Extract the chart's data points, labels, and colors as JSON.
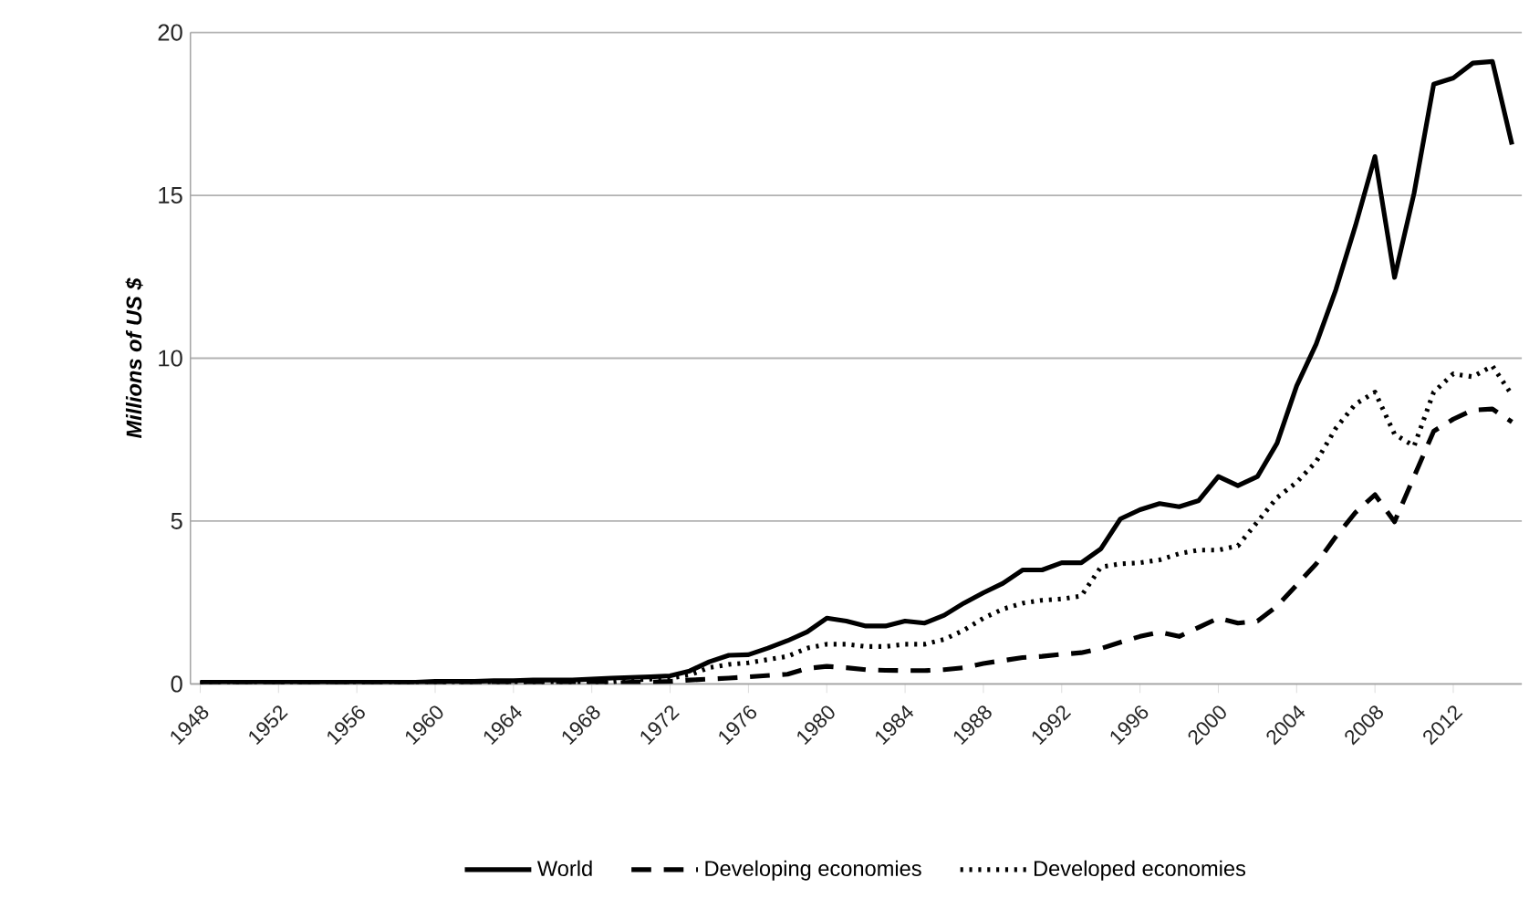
{
  "chart_data": {
    "type": "line",
    "ylabel": "Millions of US $",
    "x": [
      1948,
      1949,
      1950,
      1951,
      1952,
      1953,
      1954,
      1955,
      1956,
      1957,
      1958,
      1959,
      1960,
      1961,
      1962,
      1963,
      1964,
      1965,
      1966,
      1967,
      1968,
      1969,
      1970,
      1971,
      1972,
      1973,
      1974,
      1975,
      1976,
      1977,
      1978,
      1979,
      1980,
      1981,
      1982,
      1983,
      1984,
      1985,
      1986,
      1987,
      1988,
      1989,
      1990,
      1991,
      1992,
      1993,
      1994,
      1995,
      1996,
      1997,
      1998,
      1999,
      2000,
      2001,
      2002,
      2003,
      2004,
      2005,
      2006,
      2007,
      2008,
      2009,
      2010,
      2011,
      2012,
      2013,
      2014,
      2015
    ],
    "series": [
      {
        "name": "World",
        "color": "#000000",
        "line_style": "solid",
        "values": [
          0.05,
          0.05,
          0.05,
          0.05,
          0.05,
          0.05,
          0.05,
          0.05,
          0.05,
          0.05,
          0.05,
          0.05,
          0.08,
          0.08,
          0.08,
          0.1,
          0.1,
          0.12,
          0.12,
          0.12,
          0.15,
          0.18,
          0.2,
          0.22,
          0.25,
          0.4,
          0.68,
          0.88,
          0.9,
          1.1,
          1.33,
          1.6,
          2.02,
          1.93,
          1.78,
          1.78,
          1.93,
          1.87,
          2.11,
          2.48,
          2.8,
          3.09,
          3.5,
          3.5,
          3.72,
          3.72,
          4.15,
          5.07,
          5.35,
          5.54,
          5.44,
          5.63,
          6.37,
          6.09,
          6.37,
          7.39,
          9.15,
          10.44,
          12.1,
          14.06,
          16.19,
          12.48,
          15.07,
          18.41,
          18.6,
          19.06,
          19.11,
          16.56
        ]
      },
      {
        "name": "Developing economies",
        "color": "#000000",
        "line_style": "dashed",
        "values": [
          0.02,
          0.02,
          0.02,
          0.02,
          0.02,
          0.02,
          0.02,
          0.02,
          0.02,
          0.02,
          0.02,
          0.02,
          0.03,
          0.03,
          0.03,
          0.03,
          0.03,
          0.03,
          0.03,
          0.03,
          0.03,
          0.03,
          0.05,
          0.06,
          0.08,
          0.12,
          0.15,
          0.18,
          0.22,
          0.26,
          0.3,
          0.48,
          0.54,
          0.5,
          0.44,
          0.42,
          0.41,
          0.41,
          0.44,
          0.5,
          0.63,
          0.72,
          0.81,
          0.85,
          0.91,
          0.96,
          1.09,
          1.28,
          1.46,
          1.59,
          1.46,
          1.74,
          2.02,
          1.87,
          1.93,
          2.39,
          3.04,
          3.69,
          4.52,
          5.26,
          5.81,
          4.98,
          6.37,
          7.76,
          8.13,
          8.41,
          8.44,
          8.04
        ]
      },
      {
        "name": "Developed economies",
        "color": "#000000",
        "line_style": "dotted",
        "values": [
          0.03,
          0.03,
          0.03,
          0.03,
          0.03,
          0.03,
          0.03,
          0.03,
          0.03,
          0.03,
          0.03,
          0.03,
          0.05,
          0.05,
          0.05,
          0.05,
          0.05,
          0.05,
          0.05,
          0.05,
          0.05,
          0.05,
          0.12,
          0.15,
          0.18,
          0.28,
          0.5,
          0.6,
          0.65,
          0.75,
          0.85,
          1.1,
          1.22,
          1.22,
          1.15,
          1.15,
          1.22,
          1.22,
          1.37,
          1.65,
          2.02,
          2.3,
          2.48,
          2.57,
          2.61,
          2.7,
          3.59,
          3.69,
          3.72,
          3.81,
          4.0,
          4.11,
          4.11,
          4.24,
          4.98,
          5.72,
          6.19,
          6.83,
          7.85,
          8.59,
          8.96,
          7.67,
          7.3,
          8.96,
          9.52,
          9.43,
          9.76,
          8.87
        ]
      }
    ],
    "xlim": [
      1947.5,
      2015.5
    ],
    "xticks": [
      1948,
      1952,
      1956,
      1960,
      1964,
      1968,
      1972,
      1976,
      1980,
      1984,
      1988,
      1992,
      1996,
      2000,
      2004,
      2008,
      2012
    ],
    "ylim": [
      0,
      20
    ],
    "yticks": [
      0,
      5,
      10,
      15,
      20
    ],
    "grid": "y",
    "legend": "bottom",
    "marker": "none"
  }
}
